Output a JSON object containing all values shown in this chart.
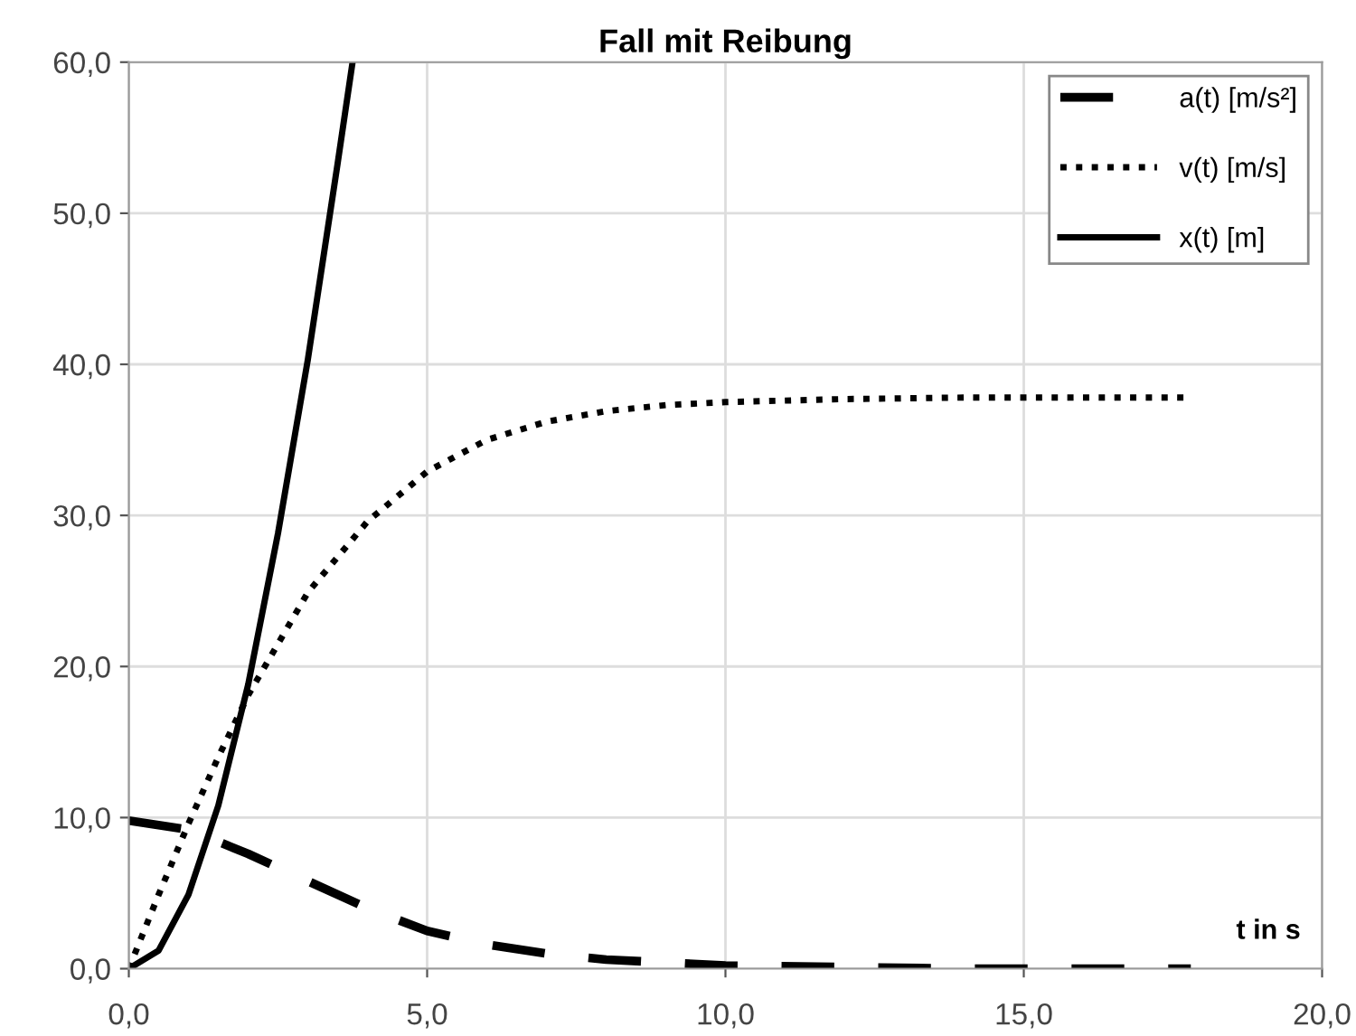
{
  "chart_data": {
    "type": "line",
    "title": "Fall mit Reibung",
    "xlabel": "t in s",
    "xlim": [
      0,
      20
    ],
    "ylim": [
      0,
      60
    ],
    "xticks": [
      {
        "value": 0,
        "label": "0,0"
      },
      {
        "value": 5,
        "label": "5,0"
      },
      {
        "value": 10,
        "label": "10,0"
      },
      {
        "value": 15,
        "label": "15,0"
      },
      {
        "value": 20,
        "label": "20,0"
      }
    ],
    "yticks": [
      {
        "value": 0,
        "label": "0,0"
      },
      {
        "value": 10,
        "label": "10,0"
      },
      {
        "value": 20,
        "label": "20,0"
      },
      {
        "value": 30,
        "label": "30,0"
      },
      {
        "value": 40,
        "label": "40,0"
      },
      {
        "value": 50,
        "label": "50,0"
      },
      {
        "value": 60,
        "label": "60,0"
      }
    ],
    "grid": true,
    "legend": "top right",
    "series": [
      {
        "name": "a(t) [m/s²]",
        "color": "#000000",
        "line_style": "dashed",
        "x": [
          0,
          1,
          2,
          3,
          4,
          5,
          6,
          7,
          8,
          10,
          12,
          14,
          17.8
        ],
        "values": [
          9.8,
          9.2,
          7.6,
          5.8,
          4.0,
          2.5,
          1.6,
          1.0,
          0.6,
          0.2,
          0.1,
          0.0,
          0.0
        ]
      },
      {
        "name": "v(t) [m/s]",
        "color": "#000000",
        "line_style": "dotted",
        "x": [
          0,
          0.5,
          1,
          1.5,
          2,
          3,
          4,
          5,
          6,
          7,
          8,
          9,
          10,
          12,
          14,
          17.8
        ],
        "values": [
          0,
          4.9,
          9.6,
          14.0,
          18.1,
          24.9,
          29.6,
          32.9,
          35.0,
          36.2,
          36.9,
          37.3,
          37.5,
          37.7,
          37.8,
          37.8
        ]
      },
      {
        "name": "x(t) [m]",
        "color": "#000000",
        "line_style": "solid",
        "x": [
          0,
          0.5,
          1,
          1.5,
          2,
          2.5,
          3,
          3.5,
          3.75
        ],
        "values": [
          0,
          1.2,
          4.9,
          10.8,
          18.8,
          28.8,
          40.3,
          53.3,
          60.0
        ]
      }
    ]
  }
}
